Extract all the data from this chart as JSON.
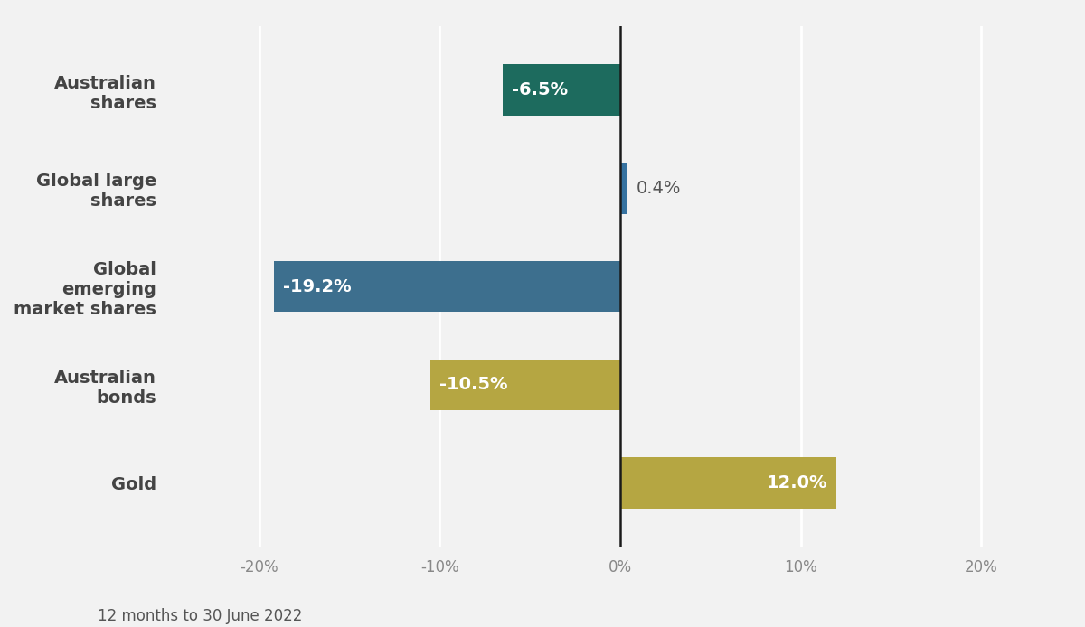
{
  "categories": [
    "Australian\nshares",
    "Global large\nshares",
    "Global\nemerging\nmarket shares",
    "Australian\nbonds",
    "Gold"
  ],
  "values": [
    -6.5,
    0.4,
    -19.2,
    -10.5,
    12.0
  ],
  "bar_colors": [
    "#1d6b5e",
    "#3672a0",
    "#3d6f8e",
    "#b5a642",
    "#b5a642"
  ],
  "label_colors": [
    "white",
    "#555555",
    "white",
    "white",
    "white"
  ],
  "bar_labels": [
    "-6.5%",
    "0.4%",
    "-19.2%",
    "-10.5%",
    "12.0%"
  ],
  "label_inside": [
    true,
    false,
    true,
    true,
    true
  ],
  "xlim": [
    -25,
    25
  ],
  "xticks": [
    -20,
    -10,
    0,
    10,
    20
  ],
  "xtick_labels": [
    "-20%",
    "-10%",
    "0%",
    "10%",
    "20%"
  ],
  "background_color": "#f2f2f2",
  "grid_color": "#ffffff",
  "bar_height": 0.52,
  "footnote": "12 months to 30 June 2022",
  "label_fontsize": 14,
  "tick_fontsize": 12,
  "category_fontsize": 14,
  "footnote_fontsize": 12,
  "zero_line_color": "#1a1a1a",
  "category_color": "#444444"
}
